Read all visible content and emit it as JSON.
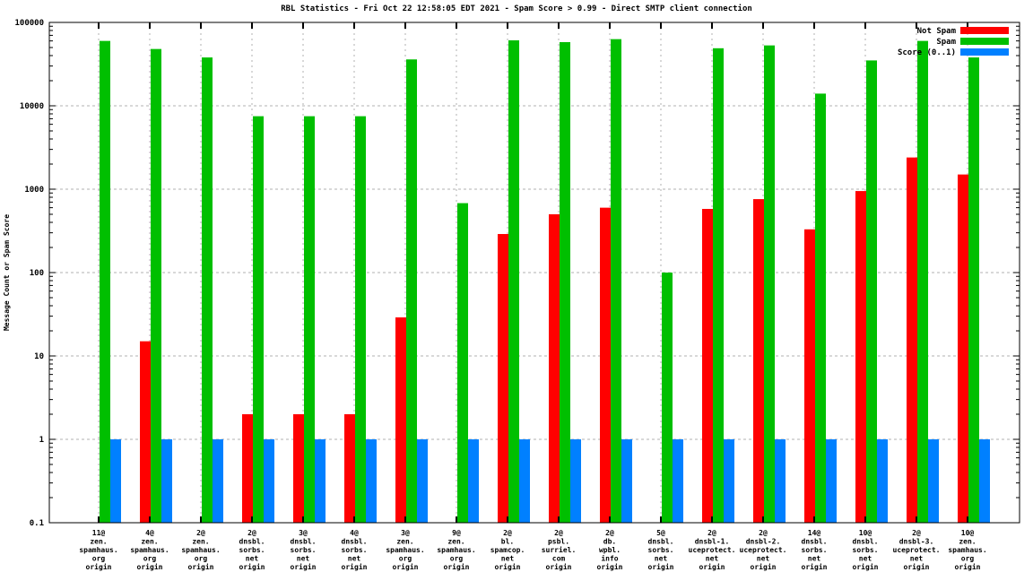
{
  "title": "RBL Statistics - Fri Oct 22 12:58:05 EDT 2021 - Spam Score > 0.99 - Direct SMTP client connection",
  "colors": {
    "not_spam": "#ff0000",
    "spam": "#00bf00",
    "score": "#0080ff",
    "grid": "#b0b0b0",
    "axis": "#000000",
    "background": "#ffffff"
  },
  "chart_data": {
    "type": "bar",
    "title": "RBL Statistics - Fri Oct 22 12:58:05 EDT 2021 - Spam Score > 0.99 - Direct SMTP client connection",
    "xlabel": "",
    "ylabel": "Message Count or Spam Score",
    "y_scale": "log",
    "ylim": [
      0.1,
      100000
    ],
    "y_ticks": [
      0.1,
      1,
      10,
      100,
      1000,
      10000,
      100000
    ],
    "y_tick_labels": [
      "0.1",
      "1",
      "10",
      "100",
      "1000",
      "10000",
      "100000"
    ],
    "grid": true,
    "legend_position": "top-right",
    "categories": [
      [
        "11@",
        "zen.",
        "spamhaus.",
        "org",
        "origin"
      ],
      [
        "4@",
        "zen.",
        "spamhaus.",
        "org",
        "origin"
      ],
      [
        "2@",
        "zen.",
        "spamhaus.",
        "org",
        "origin"
      ],
      [
        "2@",
        "dnsbl.",
        "sorbs.",
        "net",
        "origin"
      ],
      [
        "3@",
        "dnsbl.",
        "sorbs.",
        "net",
        "origin"
      ],
      [
        "4@",
        "dnsbl.",
        "sorbs.",
        "net",
        "origin"
      ],
      [
        "3@",
        "zen.",
        "spamhaus.",
        "org",
        "origin"
      ],
      [
        "9@",
        "zen.",
        "spamhaus.",
        "org",
        "origin"
      ],
      [
        "2@",
        "bl.",
        "spamcop.",
        "net",
        "origin"
      ],
      [
        "2@",
        "psbl.",
        "surriel.",
        "com",
        "origin"
      ],
      [
        "2@",
        "db.",
        "wpbl.",
        "info",
        "origin"
      ],
      [
        "5@",
        "dnsbl.",
        "sorbs.",
        "net",
        "origin"
      ],
      [
        "2@",
        "dnsbl-1.",
        "uceprotect.",
        "net",
        "origin"
      ],
      [
        "2@",
        "dnsbl-2.",
        "uceprotect.",
        "net",
        "origin"
      ],
      [
        "14@",
        "dnsbl.",
        "sorbs.",
        "net",
        "origin"
      ],
      [
        "10@",
        "dnsbl.",
        "sorbs.",
        "net",
        "origin"
      ],
      [
        "2@",
        "dnsbl-3.",
        "uceprotect.",
        "net",
        "origin"
      ],
      [
        "10@",
        "zen.",
        "spamhaus.",
        "org",
        "origin"
      ]
    ],
    "series": [
      {
        "name": "Not Spam",
        "color_key": "not_spam",
        "values": [
          null,
          15,
          null,
          2,
          2,
          2,
          29,
          null,
          290,
          500,
          600,
          null,
          580,
          760,
          330,
          950,
          2400,
          1500
        ]
      },
      {
        "name": "Spam",
        "color_key": "spam",
        "values": [
          60000,
          48000,
          38000,
          7500,
          7500,
          7500,
          36000,
          680,
          61000,
          58000,
          63000,
          100,
          49000,
          53000,
          14000,
          35000,
          60000,
          38000
        ]
      },
      {
        "name": "Score (0..1)",
        "color_key": "score",
        "values": [
          1,
          1,
          1,
          1,
          1,
          1,
          1,
          1,
          1,
          1,
          1,
          1,
          1,
          1,
          1,
          1,
          1,
          1
        ]
      }
    ]
  }
}
